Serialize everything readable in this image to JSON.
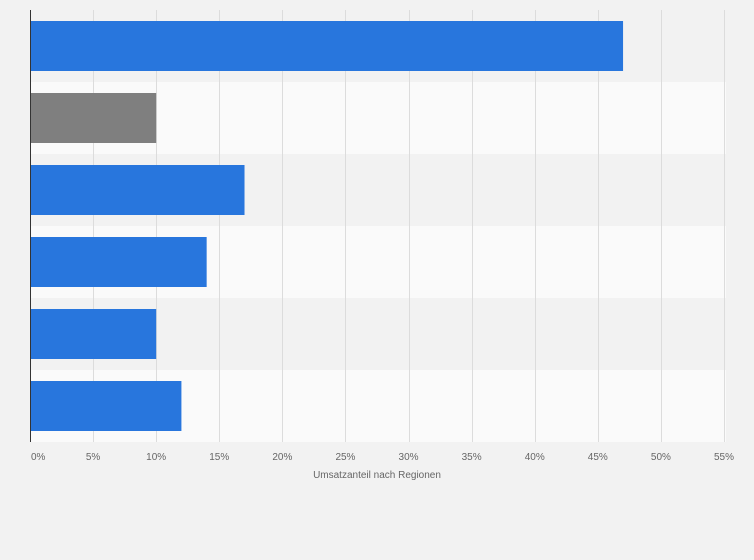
{
  "chart_data": {
    "type": "bar",
    "orientation": "horizontal",
    "categories": [
      "",
      "",
      "",
      "",
      "",
      ""
    ],
    "values": [
      47,
      10,
      17,
      14,
      10,
      12
    ],
    "bar_colors": [
      "#2876dd",
      "#7f7f7f",
      "#2876dd",
      "#2876dd",
      "#2876dd",
      "#2876dd"
    ],
    "xlabel": "Umsatzanteil nach Regionen",
    "ylabel": "",
    "xlim": [
      0,
      55
    ],
    "xticks": [
      0,
      5,
      10,
      15,
      20,
      25,
      30,
      35,
      40,
      45,
      50,
      55
    ],
    "tick_suffix": "%",
    "grid": true,
    "legend": "none",
    "colors": {
      "background": "#f2f2f2",
      "band_dark": "#f2f2f2",
      "band_light": "#fafafa",
      "gridline": "#dcdcdc",
      "axis": "#333333"
    }
  }
}
